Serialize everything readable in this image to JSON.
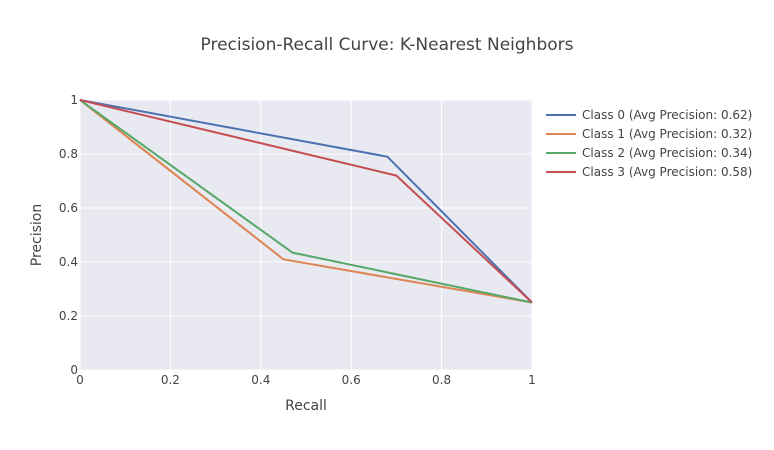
{
  "chart_data": {
    "type": "line",
    "title": "Precision-Recall Curve: K-Nearest Neighbors",
    "xlabel": "Recall",
    "ylabel": "Precision",
    "xlim": [
      0,
      1
    ],
    "ylim": [
      0,
      1
    ],
    "xticks": [
      0,
      0.2,
      0.4,
      0.6,
      0.8,
      1
    ],
    "yticks": [
      0,
      0.2,
      0.4,
      0.6,
      0.8,
      1
    ],
    "xtick_labels": [
      "0",
      "0.2",
      "0.4",
      "0.6",
      "0.8",
      "1"
    ],
    "ytick_labels": [
      "0",
      "0.2",
      "0.4",
      "0.6",
      "0.8",
      "1"
    ],
    "grid": true,
    "legend_position": "top-right",
    "series": [
      {
        "name": "Class 0 (Avg Precision: 0.62)",
        "color": "#4c72b0",
        "x": [
          0,
          0.68,
          1
        ],
        "y": [
          1,
          0.79,
          0.25
        ]
      },
      {
        "name": "Class 1 (Avg Precision: 0.32)",
        "color": "#dd8452",
        "x": [
          0,
          0.45,
          1
        ],
        "y": [
          1,
          0.41,
          0.25
        ]
      },
      {
        "name": "Class 2 (Avg Precision: 0.34)",
        "color": "#55a868",
        "x": [
          0,
          0.47,
          1
        ],
        "y": [
          1,
          0.435,
          0.25
        ]
      },
      {
        "name": "Class 3 (Avg Precision: 0.58)",
        "color": "#c44e52",
        "x": [
          0,
          0.7,
          1
        ],
        "y": [
          1,
          0.72,
          0.25
        ]
      }
    ]
  }
}
